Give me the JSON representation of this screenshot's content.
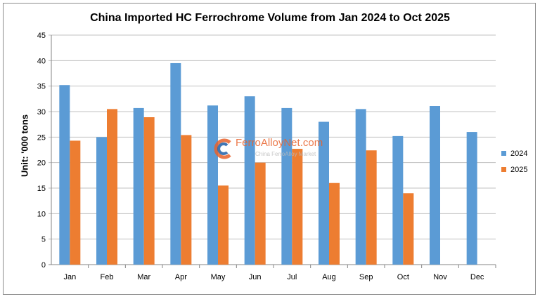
{
  "chart_data": {
    "type": "bar",
    "title": "China Imported HC Ferrochrome Volume from Jan 2024 to Oct 2025",
    "ylabel": "Unit: '000 tons",
    "xlabel": "",
    "categories": [
      "Jan",
      "Feb",
      "Mar",
      "Apr",
      "May",
      "Jun",
      "Jul",
      "Aug",
      "Sep",
      "Oct",
      "Nov",
      "Dec"
    ],
    "series": [
      {
        "name": "2024",
        "color": "#5b9bd5",
        "values": [
          35.2,
          25.0,
          30.7,
          39.5,
          31.2,
          33.0,
          30.7,
          28.0,
          30.5,
          25.2,
          31.1,
          26.0
        ]
      },
      {
        "name": "2025",
        "color": "#ed7d31",
        "values": [
          24.3,
          30.5,
          28.9,
          25.4,
          15.5,
          20.0,
          22.7,
          16.0,
          22.4,
          14.0,
          null,
          null
        ]
      }
    ],
    "ylim": [
      0,
      45
    ],
    "yticks": [
      0,
      5,
      10,
      15,
      20,
      25,
      30,
      35,
      40,
      45
    ],
    "grid": true,
    "legend_position": "right"
  },
  "watermark": {
    "main": "FerroAlloyNet.com",
    "sub": "China FerroAlloy Market"
  }
}
